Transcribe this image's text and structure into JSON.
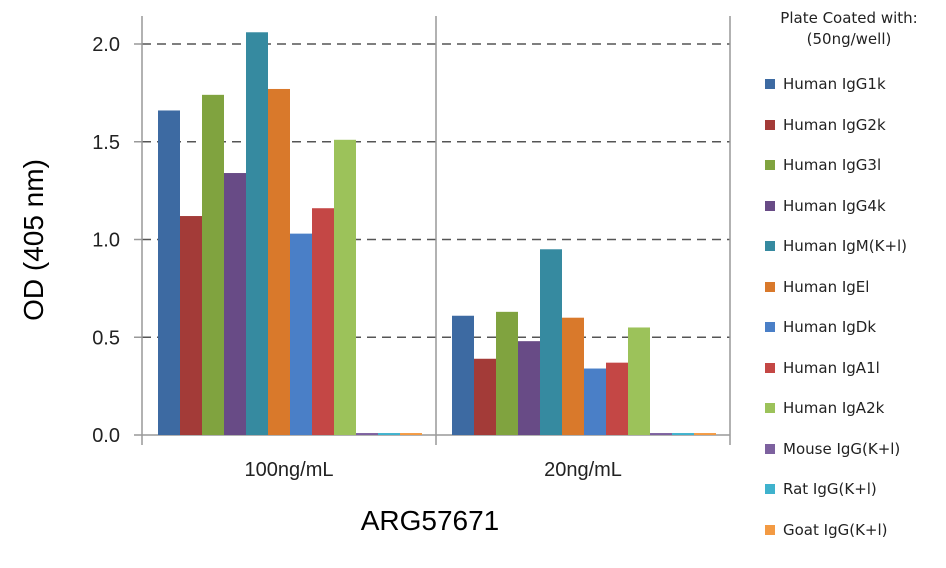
{
  "chart_data": {
    "type": "bar",
    "xlabel": "ARG57671",
    "ylabel": "OD (405 nm)",
    "ylim": [
      0,
      2.0
    ],
    "yticks": [
      "0.0",
      "0.5",
      "1.0",
      "1.5",
      "2.0"
    ],
    "grid": true,
    "legend_position": "right",
    "legend_title": [
      "Plate Coated with:",
      "(50ng/well)"
    ],
    "categories": [
      "100ng/mL",
      "20ng/mL"
    ],
    "series": [
      {
        "name": "Human IgG1k",
        "color": "#3d6aa2",
        "values": [
          1.66,
          0.61
        ]
      },
      {
        "name": "Human IgG2k",
        "color": "#a33b38",
        "values": [
          1.12,
          0.39
        ]
      },
      {
        "name": "Human IgG3l",
        "color": "#80a33f",
        "values": [
          1.74,
          0.63
        ]
      },
      {
        "name": "Human IgG4k",
        "color": "#684b86",
        "values": [
          1.34,
          0.48
        ]
      },
      {
        "name": "Human IgM(K+l)",
        "color": "#368aa0",
        "values": [
          2.06,
          0.95
        ]
      },
      {
        "name": "Human IgEl",
        "color": "#d9792b",
        "values": [
          1.77,
          0.6
        ]
      },
      {
        "name": "Human IgDk",
        "color": "#4a7fc7",
        "values": [
          1.03,
          0.34
        ]
      },
      {
        "name": "Human IgA1l",
        "color": "#c44745",
        "values": [
          1.16,
          0.37
        ]
      },
      {
        "name": "Human IgA2k",
        "color": "#9cc25a",
        "values": [
          1.51,
          0.55
        ]
      },
      {
        "name": "Mouse IgG(K+l)",
        "color": "#7d619f",
        "values": [
          0.01,
          0.01
        ]
      },
      {
        "name": "Rat IgG(K+l)",
        "color": "#3fb2cd",
        "values": [
          0.01,
          0.01
        ]
      },
      {
        "name": "Goat IgG(K+l)",
        "color": "#f39a43",
        "values": [
          0.01,
          0.01
        ]
      }
    ]
  }
}
